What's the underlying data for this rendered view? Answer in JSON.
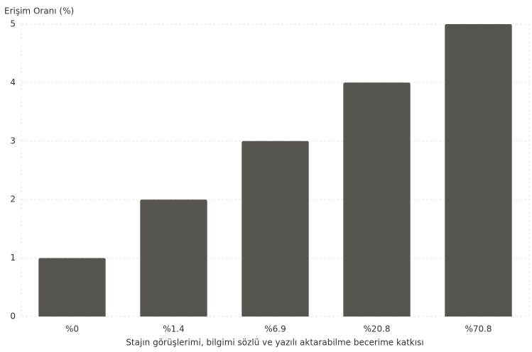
{
  "chart_data": {
    "type": "bar",
    "y_label": "Erişim Oranı (%)",
    "x_label": "Stajın görüşlerimi, bilgimi sözlü ve yazılı aktarabilme becerime katkısı",
    "categories": [
      "%0",
      "%1.4",
      "%6.9",
      "%20.8",
      "%70.8"
    ],
    "values": [
      1,
      2,
      3,
      4,
      5
    ],
    "color": "#58544f",
    "ylim": [
      0,
      5
    ],
    "yticks": [
      0,
      1,
      2,
      3,
      4,
      5
    ],
    "grid": true
  }
}
